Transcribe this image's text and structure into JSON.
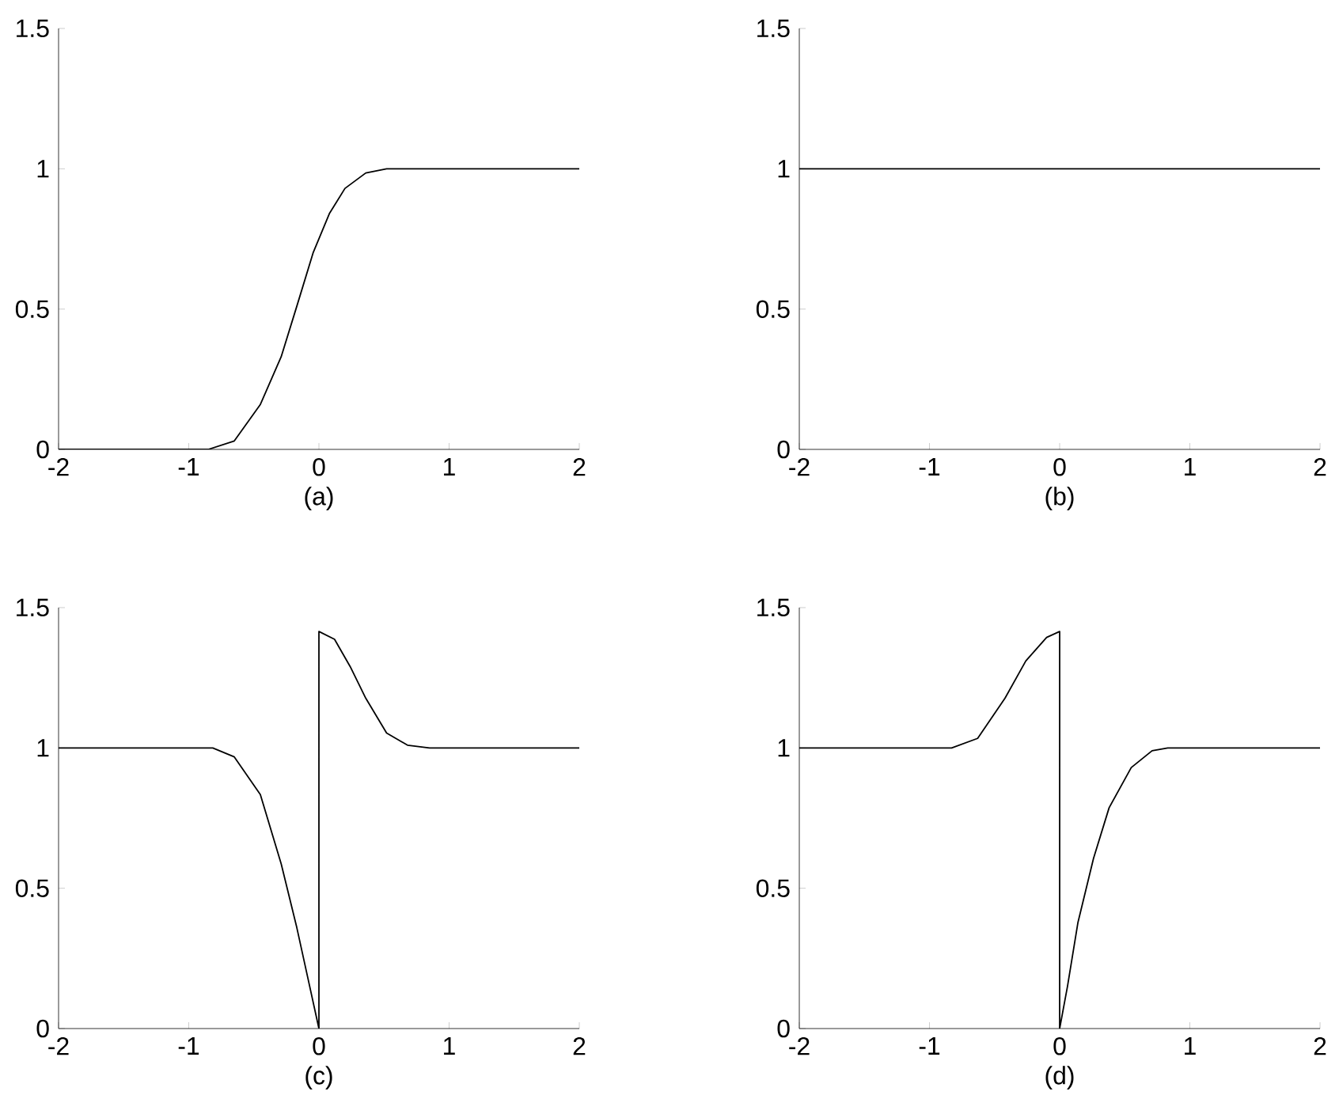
{
  "chart_data": [
    {
      "type": "line",
      "xlabel": "(a)",
      "xlim": [
        -2,
        2
      ],
      "ylim": [
        0,
        1.5
      ],
      "xticks": [
        -2,
        -1,
        0,
        1,
        2
      ],
      "yticks": [
        0,
        0.5,
        1,
        1.5
      ],
      "marker": "none",
      "line_style": "solid",
      "series": [
        {
          "color": "#000000",
          "x": [
            -2,
            -0.85,
            -0.65,
            -0.45,
            -0.29,
            -0.17,
            -0.045,
            0.08,
            0.2,
            0.36,
            0.52,
            2
          ],
          "values": [
            0,
            0,
            0.03,
            0.16,
            0.33,
            0.51,
            0.7,
            0.84,
            0.93,
            0.985,
            1,
            1
          ]
        }
      ]
    },
    {
      "type": "line",
      "xlabel": "(b)",
      "xlim": [
        -2,
        2
      ],
      "ylim": [
        0,
        1.5
      ],
      "xticks": [
        -2,
        -1,
        0,
        1,
        2
      ],
      "yticks": [
        0,
        0.5,
        1,
        1.5
      ],
      "marker": "none",
      "line_style": "solid",
      "series": [
        {
          "color": "#000000",
          "x": [
            -2,
            2
          ],
          "values": [
            1,
            1
          ]
        }
      ]
    },
    {
      "type": "line",
      "xlabel": "(c)",
      "xlim": [
        -2,
        2
      ],
      "ylim": [
        0,
        1.5
      ],
      "xticks": [
        -2,
        -1,
        0,
        1,
        2
      ],
      "yticks": [
        0,
        0.5,
        1,
        1.5
      ],
      "marker": "none",
      "line_style": "solid",
      "series": [
        {
          "color": "#000000",
          "x": [
            -2,
            -0.815,
            -0.65,
            -0.45,
            -0.29,
            -0.17,
            -0.085,
            0,
            0,
            0.12,
            0.24,
            0.36,
            0.52,
            0.68,
            0.85,
            2
          ],
          "values": [
            1,
            1,
            0.968,
            0.834,
            0.587,
            0.36,
            0.18,
            0,
            1.415,
            1.387,
            1.29,
            1.177,
            1.053,
            1.01,
            1,
            1
          ]
        }
      ]
    },
    {
      "type": "line",
      "xlabel": "(d)",
      "xlim": [
        -2,
        2
      ],
      "ylim": [
        0,
        1.5
      ],
      "xticks": [
        -2,
        -1,
        0,
        1,
        2
      ],
      "yticks": [
        0,
        0.5,
        1,
        1.5
      ],
      "marker": "none",
      "line_style": "solid",
      "series": [
        {
          "color": "#000000",
          "x": [
            -2,
            -0.83,
            -0.63,
            -0.42,
            -0.26,
            -0.1,
            0,
            0,
            0.06,
            0.14,
            0.26,
            0.38,
            0.55,
            0.71,
            0.83,
            2
          ],
          "values": [
            1,
            1,
            1.034,
            1.177,
            1.31,
            1.394,
            1.415,
            0,
            0.15,
            0.377,
            0.606,
            0.787,
            0.93,
            0.99,
            1,
            1
          ]
        }
      ]
    }
  ]
}
